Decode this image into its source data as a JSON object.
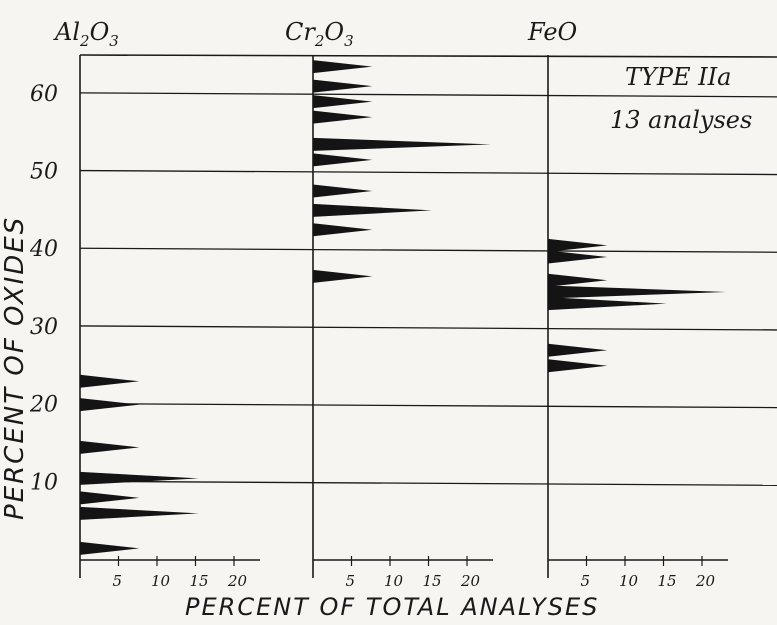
{
  "chart_data": {
    "type": "histogram-panels",
    "ylabel": "PERCENT OF OXIDES",
    "xlabel": "PERCENT OF TOTAL ANALYSES",
    "ylim": [
      0,
      65
    ],
    "yticks": [
      10,
      20,
      30,
      40,
      50,
      60
    ],
    "xlim": [
      0,
      30
    ],
    "xticks": [
      5,
      10,
      15,
      20
    ],
    "annotation": [
      "TYPE IIa",
      "13 analyses"
    ],
    "panels": [
      {
        "name": "Al2O3",
        "label_main": "Al",
        "label_sub": "2",
        "label_tail": "O",
        "label_sub2": "3",
        "spikes": [
          {
            "y": 1.5,
            "value": 7.7
          },
          {
            "y": 6,
            "value": 15.4
          },
          {
            "y": 8,
            "value": 7.7
          },
          {
            "y": 10.5,
            "value": 15.4
          },
          {
            "y": 14.5,
            "value": 7.7
          },
          {
            "y": 20,
            "value": 7.7
          },
          {
            "y": 23,
            "value": 7.7
          }
        ]
      },
      {
        "name": "Cr2O3",
        "label_main": "Cr",
        "label_sub": "2",
        "label_tail": "O",
        "label_sub2": "3",
        "spikes": [
          {
            "y": 36.5,
            "value": 7.7
          },
          {
            "y": 42.5,
            "value": 7.7
          },
          {
            "y": 45,
            "value": 15.4
          },
          {
            "y": 47.5,
            "value": 7.7
          },
          {
            "y": 51.5,
            "value": 7.7
          },
          {
            "y": 53.5,
            "value": 23.1
          },
          {
            "y": 57,
            "value": 7.7
          },
          {
            "y": 59,
            "value": 7.7
          },
          {
            "y": 61,
            "value": 7.7
          },
          {
            "y": 63.5,
            "value": 7.7
          }
        ]
      },
      {
        "name": "FeO",
        "label_main": "FeO",
        "label_sub": "",
        "label_tail": "",
        "label_sub2": "",
        "spikes": [
          {
            "y": 25,
            "value": 7.7
          },
          {
            "y": 27,
            "value": 7.7
          },
          {
            "y": 33,
            "value": 15.4
          },
          {
            "y": 34.5,
            "value": 23.1
          },
          {
            "y": 36,
            "value": 7.7
          },
          {
            "y": 39,
            "value": 7.7
          },
          {
            "y": 40.5,
            "value": 7.7
          }
        ]
      }
    ]
  }
}
